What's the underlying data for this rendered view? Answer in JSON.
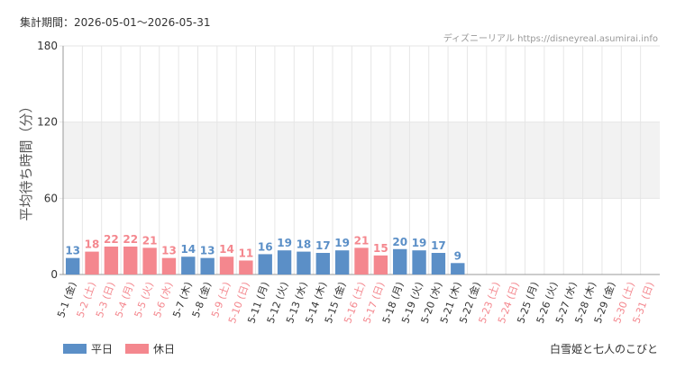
{
  "header": {
    "period": "集計期間：2026-05-01～2026-05-31",
    "attribution": "ディズニーリアル https://disneyreal.asumirai.info"
  },
  "legend": {
    "weekday": "平日",
    "holiday": "休日"
  },
  "footer": {
    "attraction": "白雪姫と七人のこびと"
  },
  "colors": {
    "weekday": "#5b8fc7",
    "holiday": "#f4878e",
    "weekday_label": "#333333",
    "holiday_label": "#f4878e",
    "band": "#f2f2f2",
    "grid": "#e6e6e6"
  },
  "chart_data": {
    "type": "bar",
    "ylabel": "平均待ち時間（分）",
    "ylim": [
      0,
      180
    ],
    "yticks": [
      0,
      60,
      120,
      180
    ],
    "shaded_band": [
      60,
      120
    ],
    "categories": [
      "5-1 (金)",
      "5-2 (土)",
      "5-3 (日)",
      "5-4 (月)",
      "5-5 (火)",
      "5-6 (水)",
      "5-7 (木)",
      "5-8 (金)",
      "5-9 (土)",
      "5-10 (日)",
      "5-11 (月)",
      "5-12 (火)",
      "5-13 (水)",
      "5-14 (木)",
      "5-15 (金)",
      "5-16 (土)",
      "5-17 (日)",
      "5-18 (月)",
      "5-19 (火)",
      "5-20 (水)",
      "5-21 (木)",
      "5-22 (金)",
      "5-23 (土)",
      "5-24 (日)",
      "5-25 (月)",
      "5-26 (火)",
      "5-27 (水)",
      "5-28 (木)",
      "5-29 (金)",
      "5-30 (土)",
      "5-31 (日)"
    ],
    "values": [
      13,
      18,
      22,
      22,
      21,
      13,
      14,
      13,
      14,
      11,
      16,
      19,
      18,
      17,
      19,
      21,
      15,
      20,
      19,
      17,
      9,
      null,
      null,
      null,
      null,
      null,
      null,
      null,
      null,
      null,
      null
    ],
    "day_type": [
      "weekday",
      "holiday",
      "holiday",
      "holiday",
      "holiday",
      "holiday",
      "weekday",
      "weekday",
      "holiday",
      "holiday",
      "weekday",
      "weekday",
      "weekday",
      "weekday",
      "weekday",
      "holiday",
      "holiday",
      "weekday",
      "weekday",
      "weekday",
      "weekday",
      "weekday",
      "holiday",
      "holiday",
      "weekday",
      "weekday",
      "weekday",
      "weekday",
      "weekday",
      "holiday",
      "holiday"
    ],
    "series": [
      {
        "name": "平日",
        "key": "weekday"
      },
      {
        "name": "休日",
        "key": "holiday"
      }
    ]
  }
}
